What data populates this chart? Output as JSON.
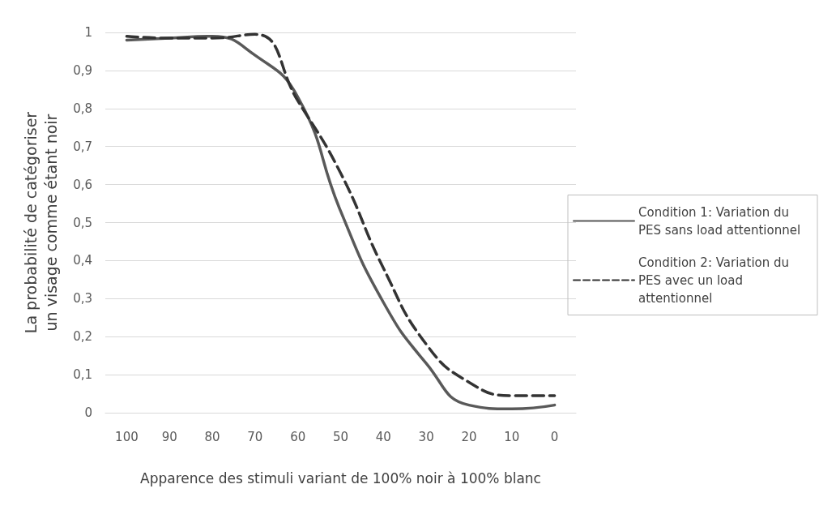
{
  "chart_data": {
    "type": "line",
    "xlabel": "Apparence des stimuli variant de 100% noir à 100% blanc",
    "ylabel": "La probabilité de catégoriser un visage comme étant noir",
    "categories": [
      "100",
      "90",
      "80",
      "70",
      "60",
      "50",
      "40",
      "30",
      "20",
      "10",
      "0"
    ],
    "ylim": [
      0,
      1
    ],
    "yticks": [
      0,
      {
        "value": 0.1,
        "label": "0,1"
      },
      {
        "value": 0.2,
        "label": "0,2"
      },
      {
        "value": 0.3,
        "label": "0,3"
      },
      {
        "value": 0.4,
        "label": "0,4"
      },
      {
        "value": 0.5,
        "label": "0,5"
      },
      {
        "value": 0.6,
        "label": "0,6"
      },
      {
        "value": 0.7,
        "label": "0,7"
      },
      {
        "value": 0.8,
        "label": "0,8"
      },
      {
        "value": 0.9,
        "label": "0,9"
      },
      1
    ],
    "grid": "y",
    "legend": "right",
    "marker": "none",
    "series": [
      {
        "name": "Condition 1: Variation du PES sans load attentionnel",
        "color": "#595959",
        "line_style": "solid",
        "values": [
          0.98,
          0.985,
          0.99,
          0.94,
          0.83,
          0.53,
          0.29,
          0.13,
          0.02,
          0.01,
          0.02
        ]
      },
      {
        "name": "Condition 2: Variation du PES avec un load attentionnel",
        "color": "#333333",
        "line_style": "dashed",
        "values": [
          0.99,
          0.985,
          0.985,
          0.995,
          0.82,
          0.63,
          0.38,
          0.18,
          0.08,
          0.045,
          0.045
        ]
      }
    ]
  }
}
